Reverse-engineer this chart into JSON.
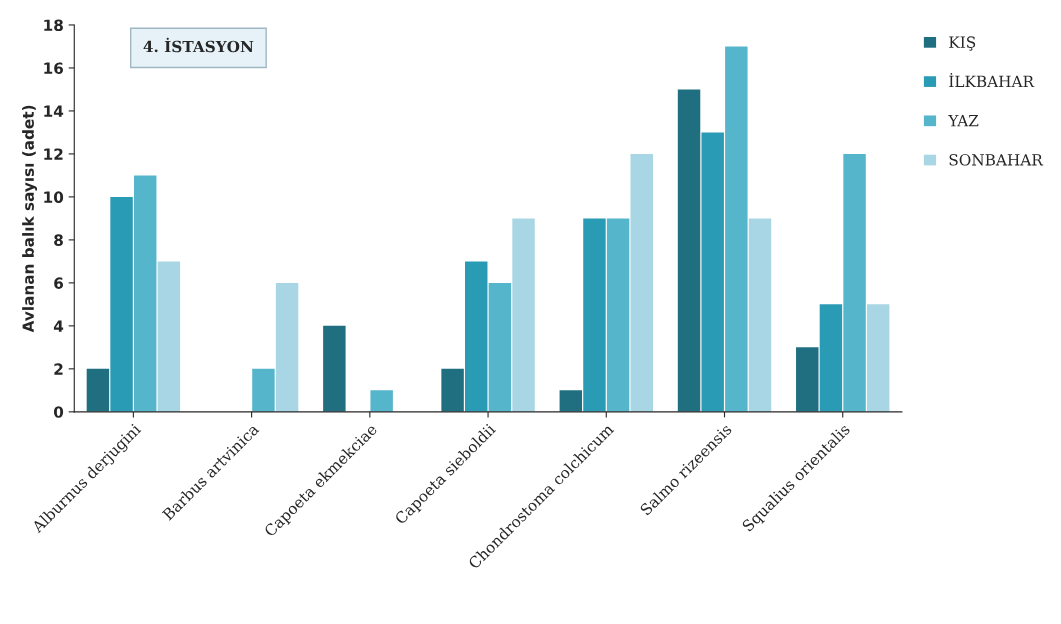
{
  "chart_data": {
    "type": "bar",
    "title": "4. İSTASYON",
    "ylabel": "Avlanan balık sayısı (adet)",
    "categories": [
      "Alburnus derjugini",
      "Barbus artvinica",
      "Capoeta ekmekciae",
      "Capoeta sieboldii",
      "Chondrostoma colchicum",
      "Salmo rizeensis",
      "Squalius orientalis"
    ],
    "series": [
      {
        "name": "KIŞ",
        "color": "#1f6f80",
        "values": [
          2,
          null,
          4,
          2,
          1,
          15,
          3
        ]
      },
      {
        "name": "İLKBAHAR",
        "color": "#2a9bb5",
        "values": [
          10,
          null,
          null,
          7,
          9,
          13,
          5
        ]
      },
      {
        "name": "YAZ",
        "color": "#55b5cb",
        "values": [
          11,
          2,
          1,
          6,
          9,
          17,
          12
        ]
      },
      {
        "name": "SONBAHAR",
        "color": "#a9d6e4",
        "values": [
          7,
          6,
          null,
          9,
          12,
          9,
          5
        ]
      }
    ],
    "ylim": [
      0,
      18
    ],
    "yticks": [
      0,
      2,
      4,
      6,
      8,
      10,
      12,
      14,
      16,
      18
    ],
    "grid": false,
    "legend": "right"
  }
}
